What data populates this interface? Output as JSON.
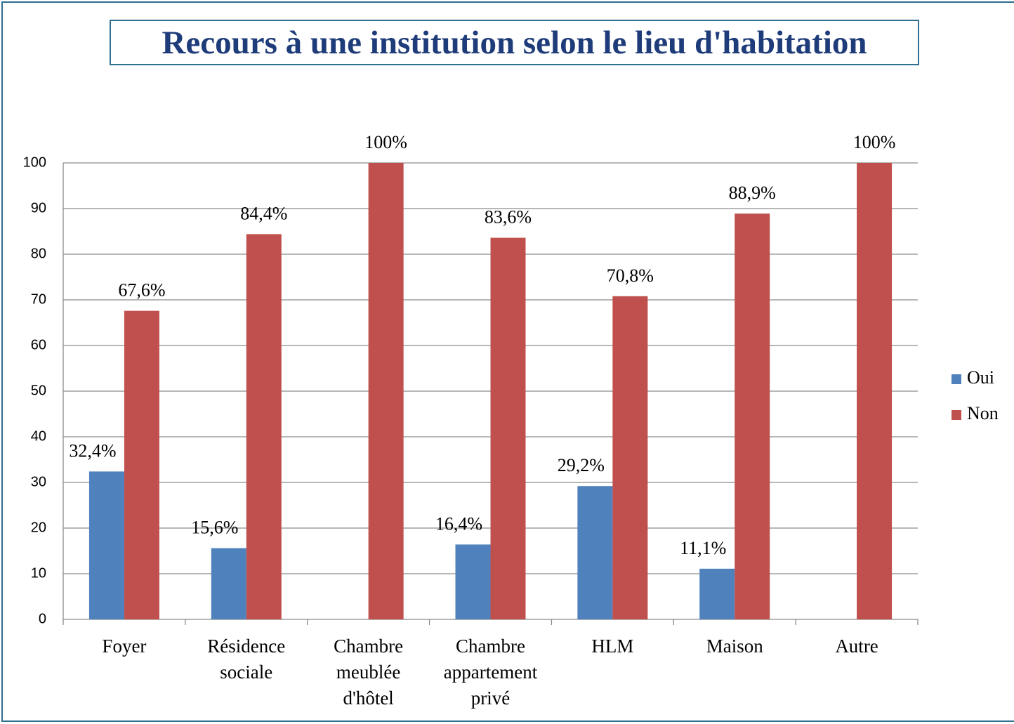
{
  "chart_data": {
    "type": "bar",
    "title": "Recours à une institution selon le lieu d'habitation",
    "categories": [
      "Foyer",
      "Résidence sociale",
      "Chambre meublée d'hôtel",
      "Chambre appartement privé",
      "HLM",
      "Maison",
      "Autre"
    ],
    "series": [
      {
        "name": "Oui",
        "color": "#4f81bd",
        "values": [
          32.4,
          15.6,
          null,
          16.4,
          29.2,
          11.1,
          null
        ],
        "value_labels": [
          "32,4%",
          "15,6%",
          null,
          "16,4%",
          "29,2%",
          "11,1%",
          null
        ]
      },
      {
        "name": "Non",
        "color": "#c0504d",
        "values": [
          67.6,
          84.4,
          100,
          83.6,
          70.8,
          88.9,
          100
        ],
        "value_labels": [
          "67,6%",
          "84,4%",
          "100%",
          "83,6%",
          "70,8%",
          "88,9%",
          "100%"
        ]
      }
    ],
    "ylim": [
      0,
      100
    ],
    "yticks": [
      0,
      10,
      20,
      30,
      40,
      50,
      60,
      70,
      80,
      90,
      100
    ],
    "grid": true,
    "legend": "right"
  }
}
